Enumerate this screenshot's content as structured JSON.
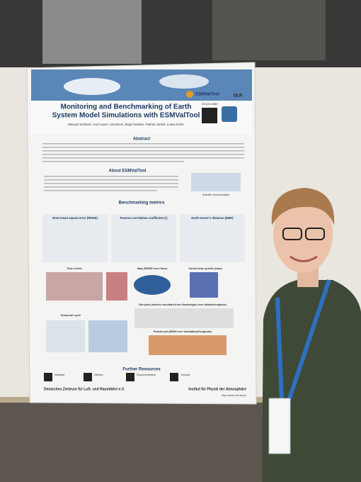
{
  "poster": {
    "title_line1": "Monitoring and Benchmarking of Earth",
    "title_line2": "System Model Simulations with ESMValTool",
    "logo": "ESMValTool",
    "logo2": "DLR",
    "poster_id": "EGU24-8567",
    "authors": "Manuel Schlund, Axel Lauer, Lisa Bock, Birgit Hassler, Patrick Jöckel, Lukas Ruhe",
    "sections": {
      "abstract": "Abstract",
      "about": "About ESMValTool",
      "scientific_documentation": "Scientific Documentation",
      "benchmarking": "Benchmarking metrics",
      "further_resources": "Further Resources"
    },
    "metrics": [
      "Root mean square error (RMSE)",
      "Pearson correlation coefficient (r)",
      "Earth mover's distance (EMD)"
    ],
    "plots": [
      "Time series",
      "Map (RMSE over time)",
      "Zonal mean profile (bias)",
      "Seasonal cycle",
      "Box plots (metrics calculated from climatologies over latitude/longitude)",
      "Portrait plot (RMSE over time/latitude/longitude)"
    ],
    "resources": [
      "Website",
      "GitHub",
      "Documentation",
      "Tutorial"
    ],
    "footer_left": "Deutsches Zentrum für Luft- und Raumfahrt e.V.",
    "footer_right": "Institut für Physik der Atmosphäre",
    "footer_url": "http://www.dlr.de/pa"
  }
}
